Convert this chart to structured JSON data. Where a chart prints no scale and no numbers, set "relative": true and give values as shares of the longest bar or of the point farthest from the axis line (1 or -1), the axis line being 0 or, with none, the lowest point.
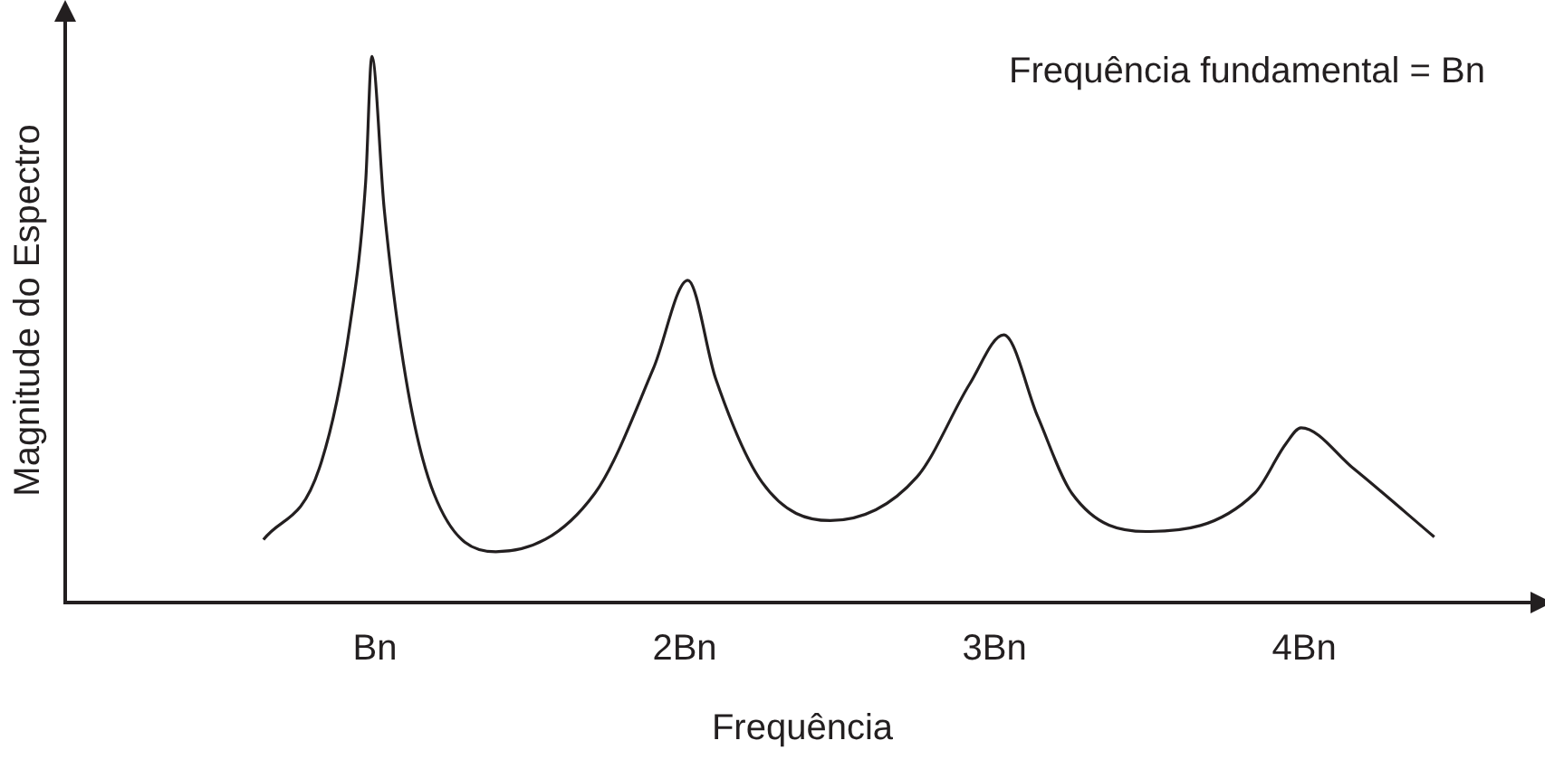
{
  "chart_data": {
    "type": "line",
    "relative": true,
    "xlabel": "Frequência",
    "ylabel": "Magnitude do Espectro",
    "annotations": [
      "Frequência fundamental = Bn"
    ],
    "xlim": [
      0,
      4.76
    ],
    "xticks": [
      {
        "value": 1,
        "label": "Bn"
      },
      {
        "value": 2,
        "label": "2Bn"
      },
      {
        "value": 3,
        "label": "3Bn"
      },
      {
        "value": 4,
        "label": "4Bn"
      }
    ],
    "grid": false,
    "legend": false,
    "marker": "none",
    "line_style": "solid",
    "series": [
      {
        "color": "#231f20",
        "x": [
          0.64,
          0.82,
          0.92,
          0.97,
          0.99,
          1.03,
          1.1,
          1.19,
          1.39,
          1.71,
          1.9,
          2.01,
          2.1,
          2.25,
          2.47,
          2.75,
          2.92,
          3.03,
          3.14,
          3.25,
          3.49,
          3.84,
          3.94,
          3.99,
          4.16,
          4.42
        ],
        "values": [
          0.115,
          0.245,
          0.51,
          0.77,
          1,
          0.72,
          0.41,
          0.2,
          0.093,
          0.2,
          0.43,
          0.59,
          0.41,
          0.22,
          0.15,
          0.23,
          0.4,
          0.49,
          0.34,
          0.2,
          0.13,
          0.2,
          0.29,
          0.32,
          0.245,
          0.12
        ]
      }
    ]
  }
}
